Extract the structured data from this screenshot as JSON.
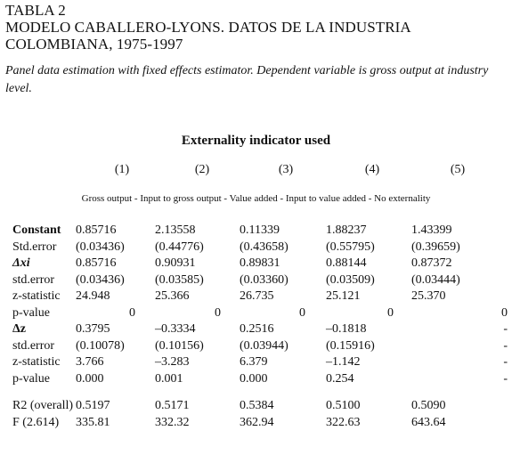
{
  "title_lines": [
    "TABLA 2",
    "MODELO CABALLERO-LYONS. DATOS DE LA INDUSTRIA",
    "COLOMBIANA, 1975-1997"
  ],
  "caption": "Panel data estimation with fixed effects estimator. Dependent variable is gross output at industry level.",
  "heading": "Externality indicator used",
  "column_numbers": [
    "(1)",
    "(2)",
    "(3)",
    "(4)",
    "(5)"
  ],
  "indicators": "Gross output - Input to gross output - Value added - Input to value added - No externality",
  "rows_a": [
    {
      "label": "Constant",
      "style": "bold",
      "values": [
        "0.85716",
        "2.13558",
        "0.11339",
        "1.88237",
        "1.43399"
      ],
      "align": "left"
    },
    {
      "label": "Std.error",
      "style": "",
      "values": [
        "(0.03436)",
        "(0.44776)",
        "(0.43658)",
        "(0.55795)",
        "(0.39659)"
      ],
      "align": "left"
    },
    {
      "label": "Δxi",
      "style": "ital",
      "values": [
        "0.85716",
        "0.90931",
        "0.89831",
        "0.88144",
        "0.87372"
      ],
      "align": "left"
    },
    {
      "label": "std.error",
      "style": "",
      "values": [
        "(0.03436)",
        "(0.03585)",
        "(0.03360)",
        "(0.03509)",
        "(0.03444)"
      ],
      "align": "left"
    },
    {
      "label": "z-statistic",
      "style": "",
      "values": [
        "24.948",
        "25.366",
        "26.735",
        "25.121",
        "25.370"
      ],
      "align": "left"
    },
    {
      "label": "p-value",
      "style": "",
      "values": [
        "0",
        "0",
        "0",
        "0",
        "0"
      ],
      "align": "right"
    },
    {
      "label": "Δz",
      "style": "bold",
      "values": [
        "0.3795",
        "–0.3334",
        "0.2516",
        "–0.1818",
        "-"
      ],
      "align": "left"
    },
    {
      "label": "std.error",
      "style": "",
      "values": [
        "(0.10078)",
        "(0.10156)",
        "(0.03944)",
        "(0.15916)",
        "-"
      ],
      "align": "left"
    },
    {
      "label": "z-statistic",
      "style": "",
      "values": [
        "3.766",
        "–3.283",
        "6.379",
        "–1.142",
        "-"
      ],
      "align": "left"
    },
    {
      "label": "p-value",
      "style": "",
      "values": [
        "0.000",
        "0.001",
        "0.000",
        "0.254",
        "-"
      ],
      "align": "left"
    }
  ],
  "rows_b": [
    {
      "label": "R2 (overall)",
      "style": "",
      "values": [
        "0.5197",
        "0.5171",
        "0.5384",
        "0.5100",
        "0.5090"
      ],
      "align": "left"
    },
    {
      "label": "F (2.614)",
      "style": "",
      "values": [
        "335.81",
        "332.32",
        "362.94",
        "322.63",
        "643.64"
      ],
      "align": "left"
    }
  ]
}
